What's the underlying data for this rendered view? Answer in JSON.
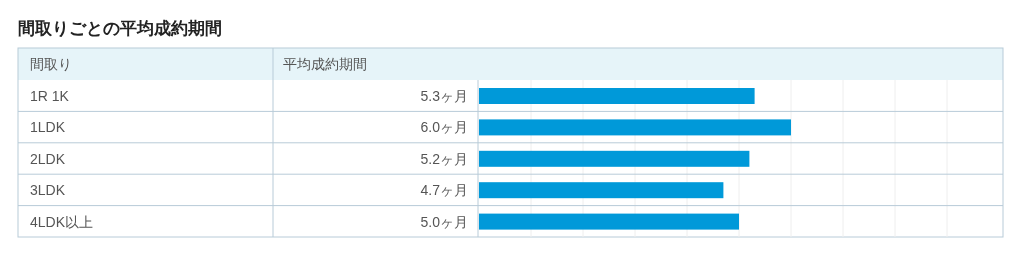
{
  "chart_data": {
    "type": "bar",
    "orientation": "horizontal",
    "title": "間取りごとの平均成約期間",
    "ylabel": "間取り",
    "xlabel": "平均成約期間",
    "categories": [
      "1R 1K",
      "1LDK",
      "2LDK",
      "3LDK",
      "4LDK以上"
    ],
    "values": [
      5.3,
      6.0,
      5.2,
      4.7,
      5.0
    ],
    "value_labels": [
      "5.3ヶ月",
      "6.0ヶ月",
      "5.2ヶ月",
      "4.7ヶ月",
      "5.0ヶ月"
    ],
    "color": "#0099d9",
    "xlim": [
      0,
      10
    ],
    "xticks": [
      {
        "value": 1,
        "label": null
      },
      {
        "value": 2,
        "label": null
      },
      {
        "value": 3,
        "label": null
      },
      {
        "value": 4,
        "label": null
      },
      {
        "value": 5,
        "label": null
      },
      {
        "value": 6,
        "label": null
      },
      {
        "value": 7,
        "label": null
      },
      {
        "value": 8,
        "label": null
      },
      {
        "value": 9,
        "label": null
      }
    ],
    "grid": "x",
    "tick_labels": "y"
  }
}
